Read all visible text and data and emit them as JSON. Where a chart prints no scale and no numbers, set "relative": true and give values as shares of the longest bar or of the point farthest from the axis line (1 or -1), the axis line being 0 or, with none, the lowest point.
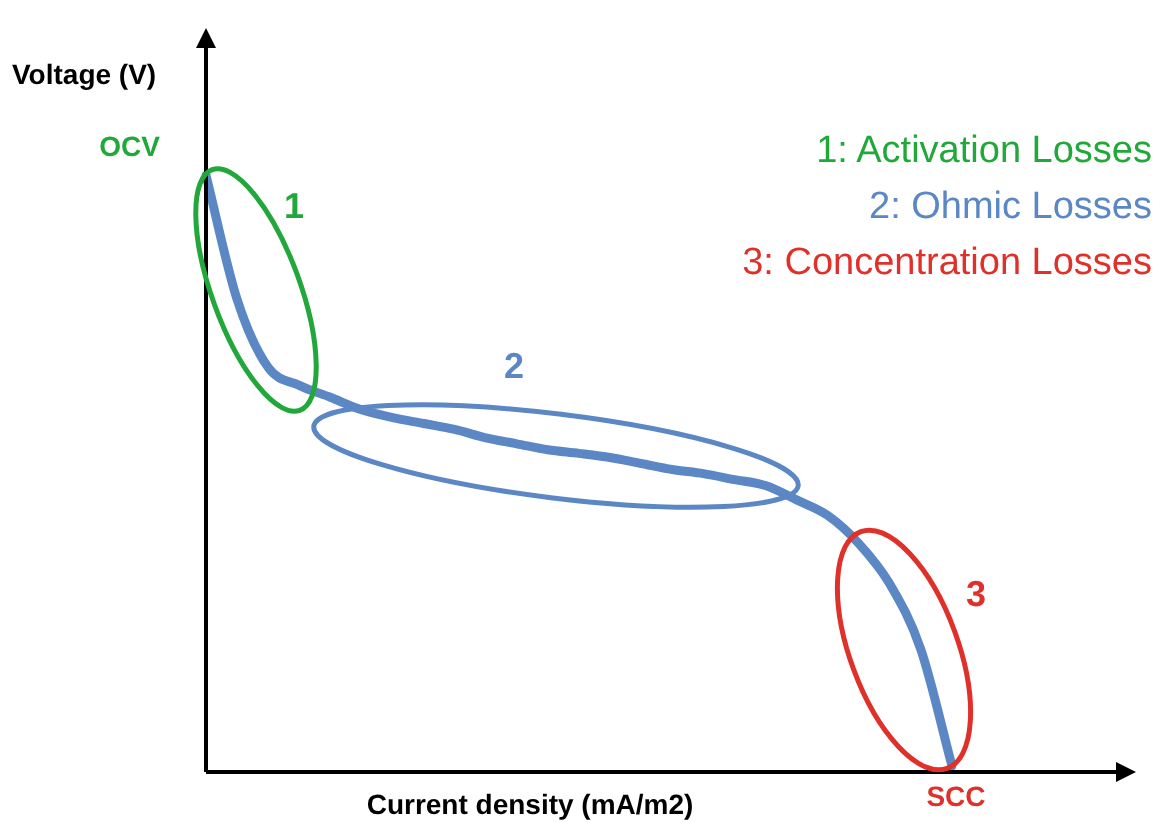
{
  "chart_data": {
    "type": "line",
    "relative": true,
    "xlabel": "Current density (mA/m2)",
    "ylabel": "Voltage (V)",
    "marker": "none",
    "categories": [
      null,
      null,
      null,
      null,
      null,
      null,
      null,
      null,
      null,
      null,
      null,
      null,
      null,
      null,
      null,
      null,
      null,
      null,
      null,
      null,
      null,
      null,
      null,
      null,
      null
    ],
    "series": [
      {
        "color": "#5b87c5",
        "values": [
          1,
          0.792,
          0.678,
          0.648,
          0.628,
          0.607,
          0.594,
          0.584,
          0.574,
          0.56,
          0.55,
          0.54,
          0.534,
          0.527,
          0.517,
          0.507,
          0.5,
          0.49,
          0.48,
          0.456,
          0.43,
          0.383,
          0.315,
          0.205,
          0.01
        ]
      }
    ],
    "annotations": [
      "OCV",
      "SCC",
      "1",
      "2",
      "3",
      "1: Activation Losses",
      "2: Ohmic Losses",
      "3: Concentration Losses"
    ]
  }
}
